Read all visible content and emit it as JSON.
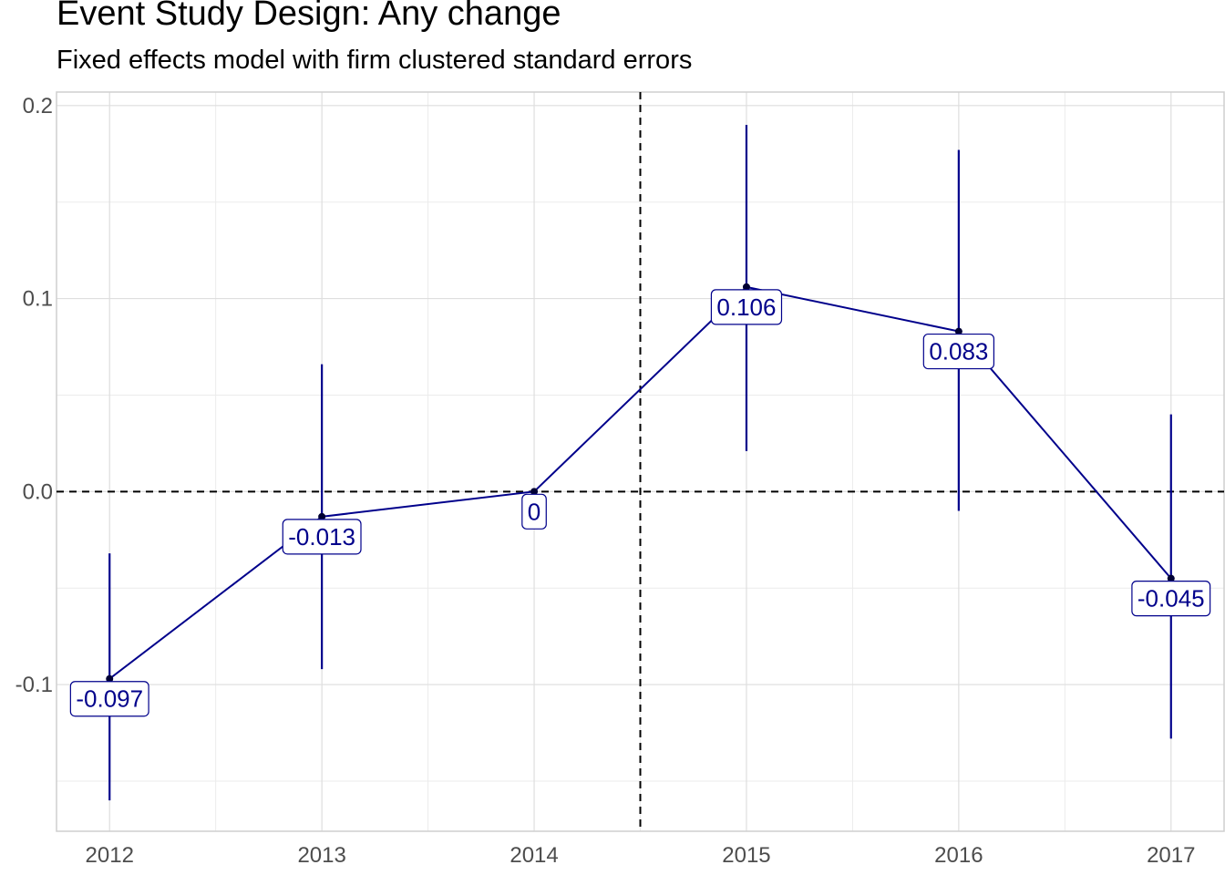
{
  "chart_data": {
    "type": "line",
    "title": "Event Study Design: Any change",
    "subtitle": "Fixed effects model with firm clustered standard errors",
    "xlabel": "",
    "ylabel": "",
    "x": [
      2012,
      2013,
      2014,
      2015,
      2016,
      2017
    ],
    "x_tick_labels": [
      "2012",
      "2013",
      "2014",
      "2015",
      "2016",
      "2017"
    ],
    "y_ticks": [
      -0.1,
      0.0,
      0.1,
      0.2
    ],
    "y_tick_labels": [
      "-0.1",
      "0.0",
      "0.1",
      "0.2"
    ],
    "xlim": [
      2011.75,
      2017.25
    ],
    "ylim": [
      -0.176,
      0.207
    ],
    "series": [
      {
        "values": [
          -0.097,
          -0.013,
          0,
          0.106,
          0.083,
          -0.045
        ],
        "ci_low": [
          -0.16,
          -0.092,
          0,
          0.021,
          -0.01,
          -0.128
        ],
        "ci_high": [
          -0.032,
          0.066,
          0,
          0.19,
          0.177,
          0.04
        ],
        "point_labels": [
          "-0.097",
          "-0.013",
          "0",
          "0.106",
          "0.083",
          "-0.045"
        ],
        "color": "#00008b"
      }
    ],
    "reference_lines": {
      "horizontal_y": 0,
      "vertical_x": 2014.5
    },
    "grid": true
  }
}
